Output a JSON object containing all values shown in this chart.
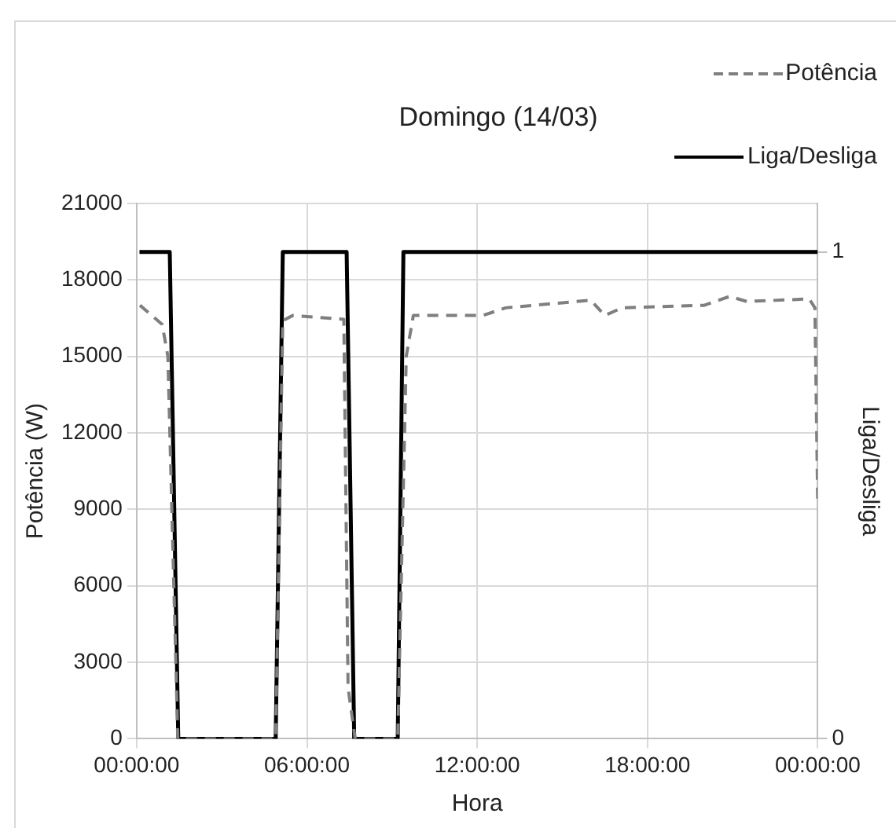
{
  "chart_data": {
    "type": "line",
    "title": "Domingo (14/03)",
    "xlabel": "Hora",
    "ylabel": "Potência (W)",
    "y2label": "Liga/Desliga",
    "xlim": [
      "--03-14T00:00",
      "--03-15T00:00"
    ],
    "xticks": [
      {
        "value": "--03-14T00:00",
        "label": "00:00:00"
      },
      {
        "value": "--03-14T06:00",
        "label": "06:00:00"
      },
      {
        "value": "--03-14T12:00",
        "label": "12:00:00"
      },
      {
        "value": "--03-14T18:00",
        "label": "18:00:00"
      },
      {
        "value": "--03-15T00:00",
        "label": "00:00:00"
      }
    ],
    "ylim": [
      0,
      21000
    ],
    "yticks": [
      0,
      3000,
      6000,
      9000,
      12000,
      15000,
      18000,
      21000
    ],
    "y2lim": [
      0,
      1.1
    ],
    "y2ticks": [
      0,
      1
    ],
    "grid": true,
    "legend": "top right",
    "marker": "none",
    "series": [
      {
        "name": "Potência",
        "color": "#7f7f7f",
        "line_style": "dashed",
        "x": [
          "--03-14T00:07",
          "--03-14T00:54",
          "--03-14T01:06",
          "--03-14T01:27",
          "--03-14T04:54",
          "--03-14T05:09",
          "--03-14T05:30",
          "--03-14T07:18",
          "--03-14T07:27",
          "--03-14T07:42",
          "--03-14T09:12",
          "--03-14T09:30",
          "--03-14T09:45",
          "--03-14T11:54",
          "--03-14T12:12",
          "--03-14T13:00",
          "--03-14T14:00",
          "--03-14T16:00",
          "--03-14T16:30",
          "--03-14T17:06",
          "--03-14T20:00",
          "--03-14T20:54",
          "--03-14T21:30",
          "--03-14T23:42",
          "--03-14T23:54",
          "--03-15T00:00"
        ],
        "values": [
          17000,
          16250,
          15000,
          0,
          0,
          16400,
          16600,
          16450,
          2000,
          0,
          0,
          15000,
          16600,
          16600,
          16600,
          16900,
          17000,
          17200,
          16600,
          16900,
          17000,
          17350,
          17150,
          17250,
          16900,
          9200
        ]
      },
      {
        "name": "Liga/Desliga",
        "color": "#000000",
        "line_style": "solid",
        "axis": "y2",
        "x": [
          "--03-14T00:06",
          "--03-14T01:10",
          "--03-14T01:28",
          "--03-14T04:54",
          "--03-14T05:09",
          "--03-14T07:24",
          "--03-14T07:40",
          "--03-14T09:12",
          "--03-14T09:24",
          "--03-15T00:00"
        ],
        "values": [
          1,
          1,
          0,
          0,
          1,
          1,
          0,
          0,
          1,
          1
        ]
      }
    ]
  }
}
